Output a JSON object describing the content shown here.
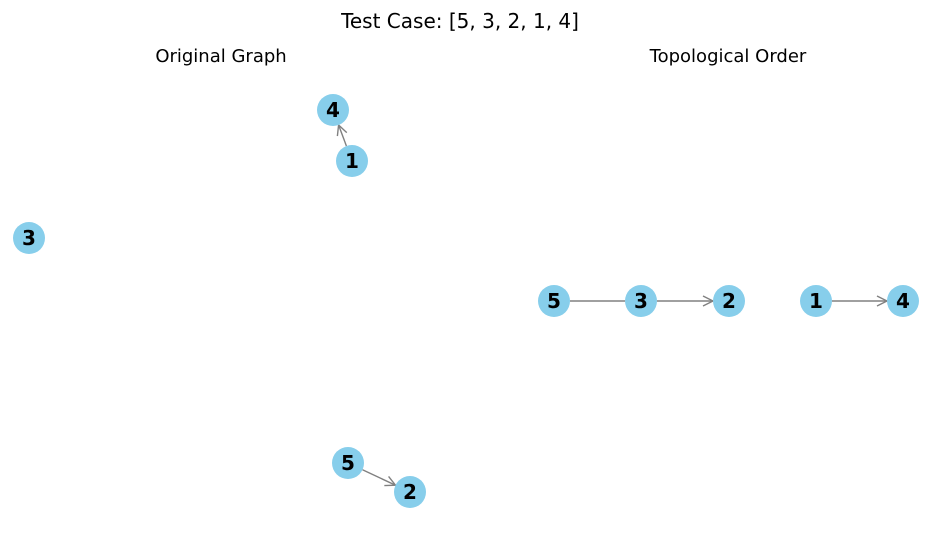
{
  "figure": {
    "title": "Test Case: [5, 3, 2, 1, 4]",
    "colors": {
      "node_fill": "#87ceeb",
      "edge": "#808080",
      "text": "#000000"
    }
  },
  "panels": {
    "original": {
      "title": "Original Graph",
      "nodes": [
        "4",
        "1",
        "3",
        "5",
        "2"
      ],
      "edges": [
        {
          "from": "1",
          "to": "4"
        },
        {
          "from": "5",
          "to": "2"
        }
      ]
    },
    "topo": {
      "title": "Topological Order",
      "nodes": [
        "5",
        "3",
        "2",
        "1",
        "4"
      ],
      "edges": [
        {
          "from": "5",
          "to": "3",
          "arrow": false
        },
        {
          "from": "3",
          "to": "2",
          "arrow": true
        },
        {
          "from": "1",
          "to": "4",
          "arrow": true
        }
      ]
    }
  }
}
